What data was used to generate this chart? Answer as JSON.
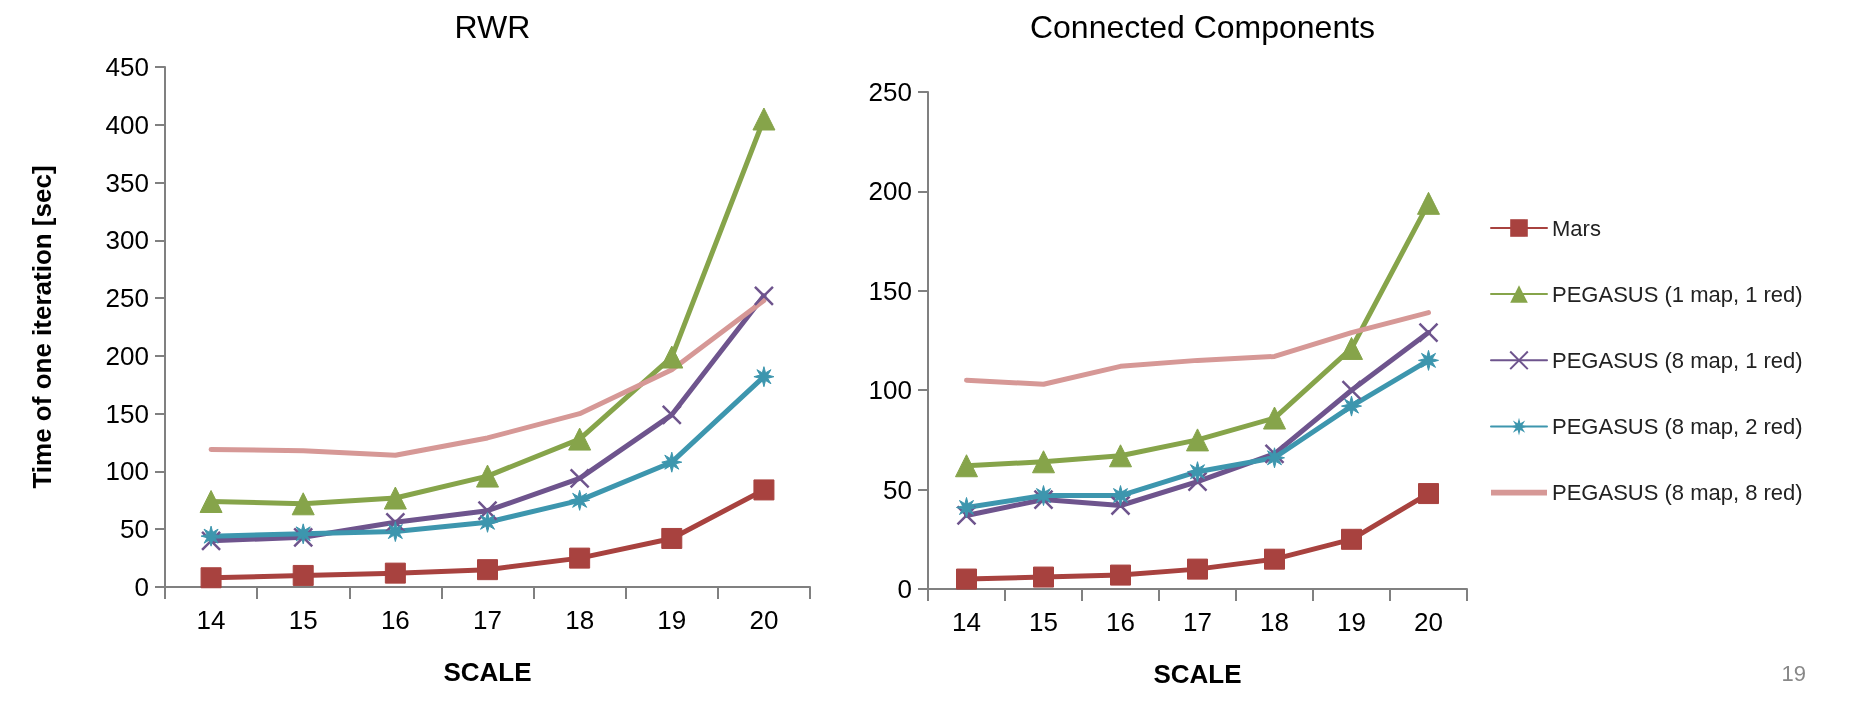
{
  "chart_data": [
    {
      "type": "line",
      "title": "RWR",
      "xlabel": "SCALE",
      "ylabel": "Time of one iteration [sec]",
      "categories": [
        "14",
        "15",
        "16",
        "17",
        "18",
        "19",
        "20"
      ],
      "ylim": [
        0,
        450
      ],
      "yticks": [
        0,
        50,
        100,
        150,
        200,
        250,
        300,
        350,
        400,
        450
      ],
      "grid": false,
      "legend": false,
      "series": [
        {
          "color": "#a8423f",
          "marker": "square",
          "values": [
            8,
            10,
            12,
            15,
            25,
            42,
            84
          ]
        },
        {
          "color": "#86a44a",
          "marker": "triangle",
          "values": [
            74,
            72,
            77,
            96,
            128,
            199,
            405
          ]
        },
        {
          "color": "#6e548d",
          "marker": "cross",
          "values": [
            40,
            43,
            56,
            66,
            94,
            149,
            252
          ]
        },
        {
          "color": "#3d96ae",
          "marker": "star",
          "values": [
            44,
            46,
            48,
            56,
            75,
            108,
            182
          ]
        },
        {
          "color": "#d69896",
          "marker": "none",
          "values": [
            119,
            118,
            114,
            129,
            150,
            188,
            248
          ]
        }
      ]
    },
    {
      "type": "line",
      "title": "Connected Components",
      "xlabel": "SCALE",
      "categories": [
        "14",
        "15",
        "16",
        "17",
        "18",
        "19",
        "20"
      ],
      "ylim": [
        0,
        250
      ],
      "yticks": [
        0,
        50,
        100,
        150,
        200,
        250
      ],
      "grid": false,
      "legend": "right",
      "annotations": [
        "19"
      ],
      "series": [
        {
          "name": "Mars",
          "color": "#a8423f",
          "marker": "square",
          "values": [
            5,
            6,
            7,
            10,
            15,
            25,
            48
          ]
        },
        {
          "name": "PEGASUS (1 map, 1 red)",
          "color": "#86a44a",
          "marker": "triangle",
          "values": [
            62,
            64,
            67,
            75,
            86,
            121,
            194
          ]
        },
        {
          "name": "PEGASUS (8 map, 1 red)",
          "color": "#6e548d",
          "marker": "cross",
          "values": [
            37,
            45,
            42,
            54,
            68,
            100,
            129
          ]
        },
        {
          "name": "PEGASUS (8 map, 2 red)",
          "color": "#3d96ae",
          "marker": "star",
          "values": [
            41,
            47,
            47,
            59,
            66,
            92,
            115
          ]
        },
        {
          "name": "PEGASUS (8 map, 8 red)",
          "color": "#d69896",
          "marker": "none",
          "values": [
            105,
            103,
            112,
            115,
            117,
            129,
            139
          ]
        }
      ]
    }
  ]
}
